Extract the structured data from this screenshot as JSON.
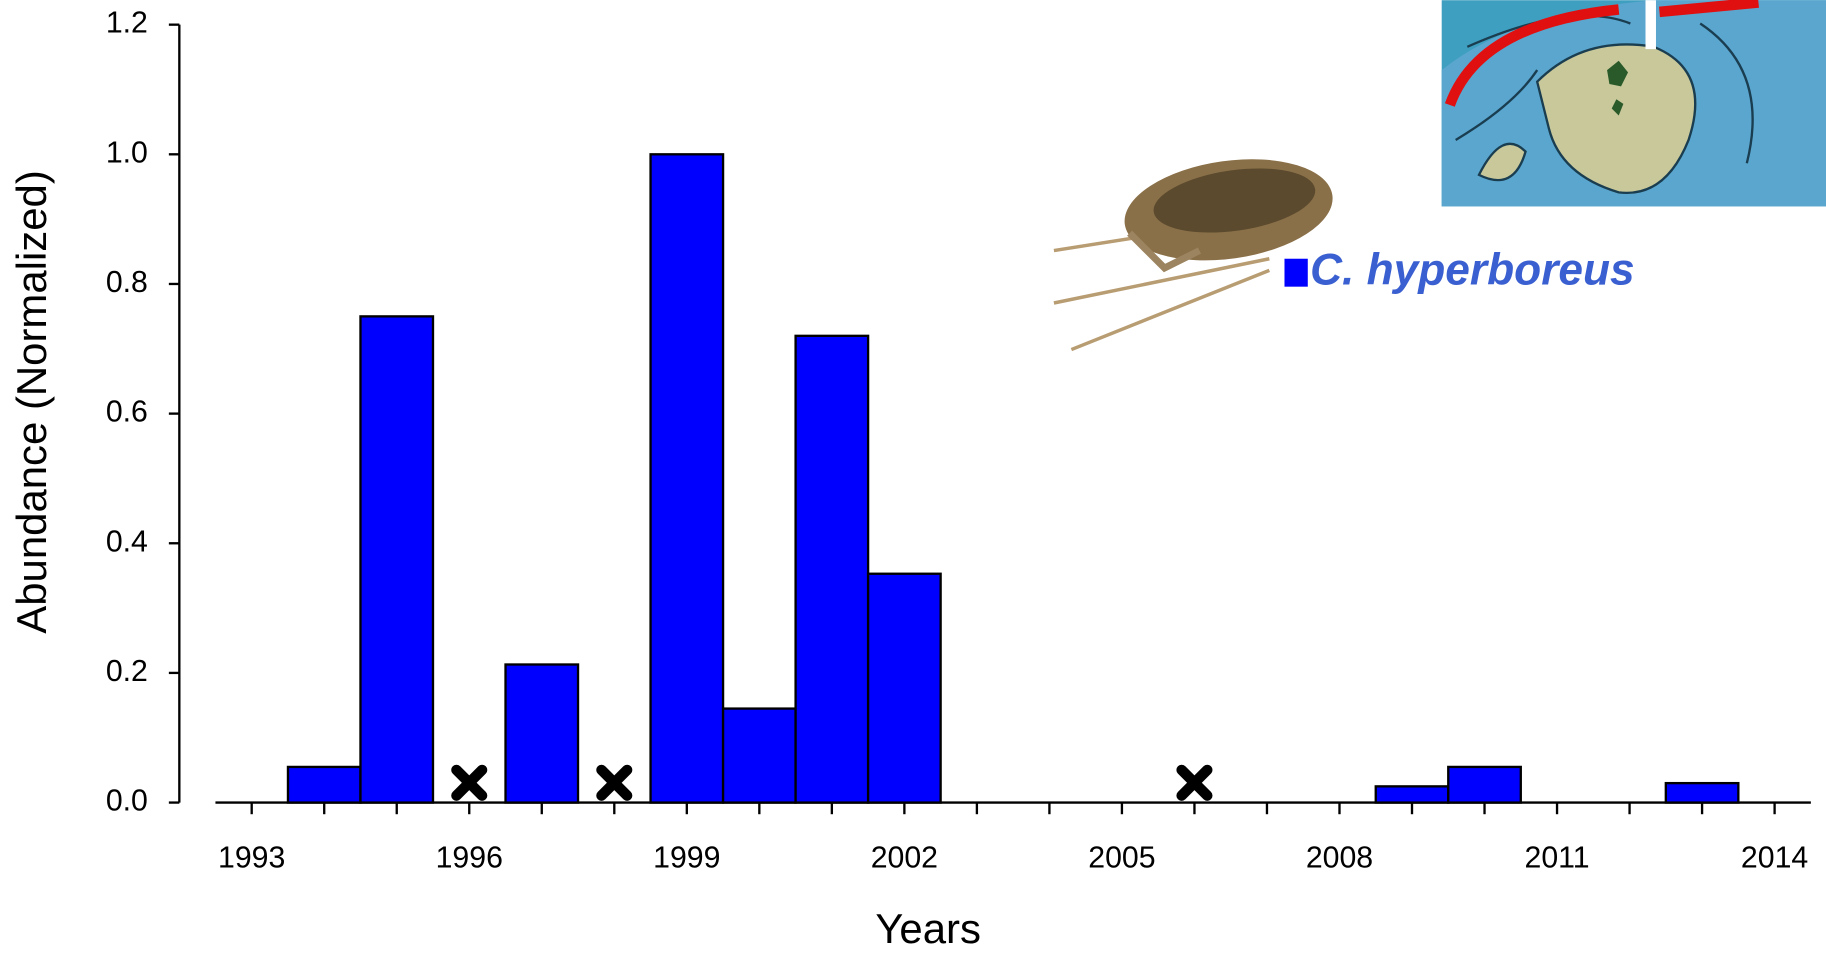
{
  "chart_data": {
    "type": "bar",
    "x_label": "Years",
    "y_label": "Abundance (Normalized)",
    "x": [
      1994,
      1995,
      1997,
      1999,
      2000,
      2001,
      2002,
      2009,
      2010,
      2013
    ],
    "series": [
      {
        "name": "C. hyperboreus",
        "color": "#0000ff",
        "values": [
          0.055,
          0.75,
          0.213,
          1.0,
          0.145,
          0.72,
          0.353,
          0.025,
          0.055,
          0.03
        ]
      }
    ],
    "missing_years": [
      1996,
      1998,
      2006
    ],
    "xlim": [
      1992.5,
      2014.5
    ],
    "xticks": [
      1993,
      1996,
      1999,
      2002,
      2005,
      2008,
      2011,
      2014
    ],
    "x_minor_ticks": [
      1994,
      1995,
      1997,
      1998,
      2000,
      2001,
      2003,
      2004,
      2006,
      2007,
      2009,
      2010,
      2012,
      2013
    ],
    "ylim": [
      0,
      1.2
    ],
    "yticks": [
      {
        "value": 0,
        "label": "0.0"
      },
      {
        "value": 0.2,
        "label": "0.2"
      },
      {
        "value": 0.4,
        "label": "0.4"
      },
      {
        "value": 0.6,
        "label": "0.6"
      },
      {
        "value": 0.8,
        "label": "0.8"
      },
      {
        "value": 1.0,
        "label": "1.0"
      },
      {
        "value": 1.2,
        "label": "1.2"
      }
    ]
  }
}
